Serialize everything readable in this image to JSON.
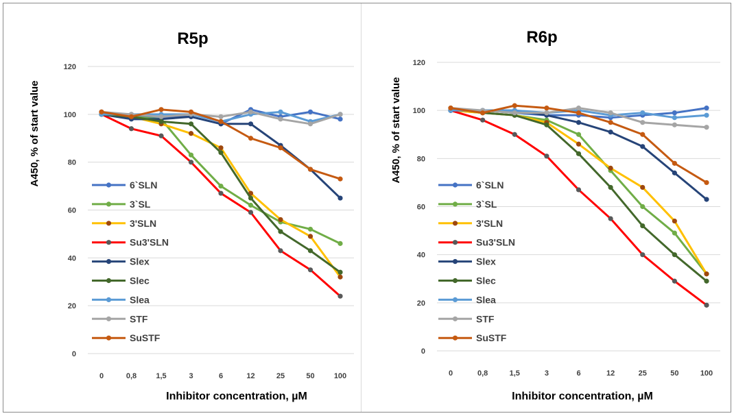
{
  "figure": {
    "panel_count": 2
  },
  "colors": {
    "grid": "#d9d9d9",
    "text": "#404040",
    "title": "#000000"
  },
  "chart_data": [
    {
      "type": "line",
      "title": "R5p",
      "xlabel": "Inhibitor concentration, µM",
      "ylabel": "A450, % of start value",
      "ylim": [
        0,
        120
      ],
      "yticks": [
        0,
        20,
        40,
        60,
        80,
        100,
        120
      ],
      "categories": [
        "0",
        "0,8",
        "1,5",
        "3",
        "6",
        "12",
        "25",
        "50",
        "100"
      ],
      "grid": "horizontal",
      "legend": "left",
      "series": [
        {
          "name": "6`SLN",
          "color": "#4472c4",
          "marker_color": "#4472c4",
          "values": [
            100,
            99,
            99,
            99,
            96,
            102,
            99,
            101,
            98
          ]
        },
        {
          "name": "3`SL",
          "color": "#70ad47",
          "marker_color": "#70ad47",
          "values": [
            100,
            99,
            98,
            83,
            70,
            62,
            55,
            52,
            46
          ]
        },
        {
          "name": "3'SLN",
          "color": "#ffc000",
          "marker_color": "#9e480e",
          "values": [
            101,
            99,
            96,
            92,
            86,
            67,
            56,
            49,
            32
          ]
        },
        {
          "name": "Su3'SLN",
          "color": "#ff0000",
          "marker_color": "#595959",
          "values": [
            100,
            94,
            91,
            80,
            67,
            59,
            43,
            35,
            24
          ]
        },
        {
          "name": "Slex",
          "color": "#264478",
          "marker_color": "#264478",
          "values": [
            100,
            98,
            98,
            99,
            96,
            96,
            87,
            77,
            65
          ]
        },
        {
          "name": "Slec",
          "color": "#43682b",
          "marker_color": "#43682b",
          "values": [
            100,
            99,
            97,
            96,
            84,
            65,
            51,
            43,
            34
          ]
        },
        {
          "name": "Slea",
          "color": "#5b9bd5",
          "marker_color": "#5b9bd5",
          "values": [
            100,
            100,
            100,
            100,
            97,
            100,
            101,
            97,
            100
          ]
        },
        {
          "name": "STF",
          "color": "#a5a5a5",
          "marker_color": "#a5a5a5",
          "values": [
            101,
            100,
            99,
            100,
            99,
            101,
            98,
            96,
            100
          ]
        },
        {
          "name": "SuSTF",
          "color": "#c55a11",
          "marker_color": "#c55a11",
          "values": [
            101,
            99,
            102,
            101,
            97,
            90,
            86,
            77,
            73
          ]
        }
      ]
    },
    {
      "type": "line",
      "title": "R6p",
      "xlabel": "Inhibitor concentration, µM",
      "ylabel": "A450, % of start value",
      "ylim": [
        0,
        120
      ],
      "yticks": [
        0,
        20,
        40,
        60,
        80,
        100,
        120
      ],
      "categories": [
        "0",
        "0,8",
        "1,5",
        "3",
        "6",
        "12",
        "25",
        "50",
        "100"
      ],
      "grid": "horizontal",
      "legend": "left",
      "series": [
        {
          "name": "6`SLN",
          "color": "#4472c4",
          "marker_color": "#4472c4",
          "values": [
            100,
            100,
            99,
            98,
            98,
            97,
            98,
            99,
            101
          ]
        },
        {
          "name": "3`SL",
          "color": "#70ad47",
          "marker_color": "#70ad47",
          "values": [
            100,
            99,
            98,
            96,
            90,
            75,
            60,
            49,
            32
          ]
        },
        {
          "name": "3'SLN",
          "color": "#ffc000",
          "marker_color": "#9e480e",
          "values": [
            100,
            99,
            98,
            95,
            86,
            76,
            68,
            54,
            32
          ]
        },
        {
          "name": "Su3'SLN",
          "color": "#ff0000",
          "marker_color": "#595959",
          "values": [
            100,
            96,
            90,
            81,
            67,
            55,
            40,
            29,
            19
          ]
        },
        {
          "name": "Slex",
          "color": "#264478",
          "marker_color": "#264478",
          "values": [
            100,
            100,
            100,
            98,
            95,
            91,
            85,
            74,
            63
          ]
        },
        {
          "name": "Slec",
          "color": "#43682b",
          "marker_color": "#43682b",
          "values": [
            101,
            99,
            98,
            94,
            82,
            68,
            52,
            40,
            29
          ]
        },
        {
          "name": "Slea",
          "color": "#5b9bd5",
          "marker_color": "#5b9bd5",
          "values": [
            100,
            100,
            100,
            99,
            100,
            98,
            99,
            97,
            98
          ]
        },
        {
          "name": "STF",
          "color": "#a5a5a5",
          "marker_color": "#a5a5a5",
          "values": [
            101,
            100,
            99,
            99,
            101,
            99,
            95,
            94,
            93
          ]
        },
        {
          "name": "SuSTF",
          "color": "#c55a11",
          "marker_color": "#c55a11",
          "values": [
            101,
            99,
            102,
            101,
            99,
            95,
            90,
            78,
            70
          ]
        }
      ]
    }
  ]
}
